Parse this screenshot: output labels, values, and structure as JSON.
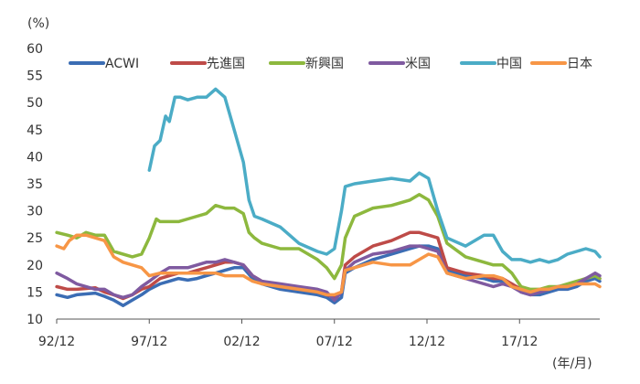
{
  "chart_data": {
    "type": "line",
    "ylabel": "(%)",
    "xlabel": "(年/月)",
    "ylim": [
      10,
      60
    ],
    "yticks": [
      10,
      15,
      20,
      25,
      30,
      35,
      40,
      45,
      50,
      55,
      60
    ],
    "xlim": [
      1992.917,
      2022.25
    ],
    "xticks": [
      {
        "value": 1992.917,
        "label": "92/12"
      },
      {
        "value": 1997.917,
        "label": "97/12"
      },
      {
        "value": 2002.917,
        "label": "02/12"
      },
      {
        "value": 2007.917,
        "label": "07/12"
      },
      {
        "value": 2012.917,
        "label": "12/12"
      },
      {
        "value": 2017.917,
        "label": "17/12"
      }
    ],
    "grid": false,
    "legend_position": "top",
    "series": [
      {
        "name": "ACWI",
        "color": "#3B6DB4",
        "x": [
          1992.92,
          1993.5,
          1994,
          1995,
          1995.5,
          1996,
          1996.5,
          1997,
          1997.5,
          1997.92,
          1998.5,
          1999,
          1999.5,
          2000,
          2000.5,
          2001,
          2001.5,
          2002,
          2002.5,
          2003,
          2003.5,
          2004,
          2005,
          2006,
          2007,
          2007.5,
          2007.92,
          2008.3,
          2008.5,
          2009,
          2010,
          2011,
          2012,
          2012.5,
          2013,
          2013.5,
          2014,
          2015,
          2016,
          2016.5,
          2017,
          2017.5,
          2018,
          2018.5,
          2019,
          2019.5,
          2020,
          2020.5,
          2021,
          2021.5,
          2022,
          2022.25
        ],
        "y": [
          14.5,
          14,
          14.5,
          14.8,
          14.2,
          13.5,
          12.5,
          13.5,
          14.5,
          15.5,
          16.5,
          17,
          17.5,
          17.2,
          17.5,
          18,
          18.5,
          19,
          19.5,
          19.5,
          17.5,
          16.5,
          15.5,
          15,
          14.5,
          14,
          13,
          14,
          18.5,
          19.5,
          21,
          22,
          23,
          23.5,
          23.5,
          23,
          19,
          18,
          17.5,
          17,
          17,
          16.5,
          15,
          14.5,
          14.5,
          15,
          15.5,
          15.5,
          16,
          17,
          17.5,
          17
        ]
      },
      {
        "name": "先進国",
        "color": "#BE4B48",
        "x": [
          1992.92,
          1993.5,
          1994,
          1995,
          1995.5,
          1996,
          1996.5,
          1997,
          1997.5,
          1997.92,
          1998.5,
          1999,
          1999.5,
          2000,
          2000.5,
          2001,
          2001.5,
          2002,
          2002.5,
          2003,
          2003.5,
          2004,
          2005,
          2006,
          2007,
          2007.5,
          2007.92,
          2008.3,
          2008.5,
          2009,
          2010,
          2011,
          2012,
          2012.5,
          2013,
          2013.5,
          2014,
          2015,
          2016,
          2016.5,
          2017,
          2017.5,
          2018,
          2018.5,
          2019,
          2019.5,
          2020,
          2020.5,
          2021,
          2021.5,
          2022,
          2022.25
        ],
        "y": [
          16,
          15.5,
          15.5,
          15.8,
          15,
          14.5,
          13.8,
          14.5,
          15.5,
          16,
          17.5,
          18,
          18.5,
          18.5,
          19,
          19.5,
          20,
          20.5,
          20.5,
          20,
          18,
          17,
          16,
          15.5,
          15,
          14.5,
          14,
          15,
          20,
          21.5,
          23.5,
          24.5,
          26,
          26,
          25.5,
          25,
          19.5,
          18.5,
          18,
          17.5,
          17.5,
          16.5,
          15.5,
          14.5,
          15,
          15.5,
          16,
          16,
          16.5,
          17.5,
          18,
          17.5
        ]
      },
      {
        "name": "新興国",
        "color": "#8DB83E",
        "x": [
          1992.92,
          1993.5,
          1994,
          1994.5,
          1995,
          1995.5,
          1996,
          1997,
          1997.5,
          1997.92,
          1998.3,
          1998.5,
          1999,
          1999.5,
          2000,
          2000.5,
          2001,
          2001.5,
          2002,
          2002.5,
          2003,
          2003.3,
          2003.6,
          2004,
          2005,
          2006,
          2007,
          2007.5,
          2007.92,
          2008.3,
          2008.5,
          2009,
          2010,
          2011,
          2012,
          2012.5,
          2013,
          2013.5,
          2014,
          2015,
          2016,
          2016.5,
          2017,
          2017.5,
          2018,
          2018.5,
          2019,
          2019.5,
          2020,
          2020.5,
          2021,
          2021.5,
          2022,
          2022.25
        ],
        "y": [
          26,
          25.5,
          25,
          26,
          25.5,
          25.5,
          22.5,
          21.5,
          22,
          25,
          28.5,
          28,
          28,
          28,
          28.5,
          29,
          29.5,
          31,
          30.5,
          30.5,
          29.5,
          26,
          25,
          24,
          23,
          23,
          21,
          19.5,
          17.5,
          20,
          25,
          29,
          30.5,
          31,
          32,
          33,
          32,
          29,
          24,
          21.5,
          20.5,
          20,
          20,
          18.5,
          16,
          15.5,
          15.5,
          16,
          16,
          16.5,
          17,
          17.5,
          18,
          17.5
        ]
      },
      {
        "name": "米国",
        "color": "#7F5AA0",
        "x": [
          1992.92,
          1993.5,
          1994,
          1995,
          1995.5,
          1996,
          1996.5,
          1997,
          1997.5,
          1997.92,
          1998.5,
          1999,
          1999.5,
          2000,
          2000.5,
          2001,
          2001.5,
          2002,
          2002.5,
          2003,
          2003.5,
          2004,
          2005,
          2006,
          2007,
          2007.5,
          2007.92,
          2008.3,
          2008.5,
          2009,
          2010,
          2011,
          2012,
          2012.5,
          2013,
          2013.5,
          2014,
          2015,
          2016,
          2016.5,
          2017,
          2017.5,
          2018,
          2018.5,
          2019,
          2019.5,
          2020,
          2020.5,
          2021,
          2021.5,
          2022,
          2022.25
        ],
        "y": [
          18.5,
          17.5,
          16.5,
          15.5,
          15.5,
          14.5,
          14,
          14.5,
          16,
          17,
          18.5,
          19.5,
          19.5,
          19.5,
          20,
          20.5,
          20.5,
          21,
          20.5,
          20,
          18,
          17,
          16.5,
          16,
          15.5,
          15,
          13.5,
          15,
          19,
          20.5,
          22,
          22.5,
          23.5,
          23.5,
          23,
          22.5,
          18.5,
          17.5,
          16.5,
          16,
          16.5,
          16,
          15,
          14.5,
          15,
          15.5,
          16,
          16,
          16.5,
          17.5,
          18.5,
          18
        ]
      },
      {
        "name": "中国",
        "color": "#4BACC6",
        "x": [
          1997.92,
          1998.2,
          1998.5,
          1998.8,
          1999,
          1999.3,
          1999.6,
          2000,
          2000.5,
          2001,
          2001.5,
          2002,
          2002.5,
          2003,
          2003.3,
          2003.6,
          2004,
          2005,
          2006,
          2007,
          2007.5,
          2007.92,
          2008.3,
          2008.5,
          2009,
          2010,
          2011,
          2012,
          2012.5,
          2013,
          2013.5,
          2014,
          2015,
          2016,
          2016.5,
          2017,
          2017.5,
          2018,
          2018.5,
          2019,
          2019.5,
          2020,
          2020.5,
          2021,
          2021.5,
          2022,
          2022.25
        ],
        "y": [
          37.5,
          42,
          43,
          47.5,
          46.5,
          51,
          51,
          50.5,
          51,
          51,
          52.5,
          51,
          45,
          39,
          32,
          29,
          28.5,
          27,
          24,
          22.5,
          22,
          23,
          30,
          34.5,
          35,
          35.5,
          36,
          35.5,
          37,
          36,
          30,
          25,
          23.5,
          25.5,
          25.5,
          22.5,
          21,
          21,
          20.5,
          21,
          20.5,
          21,
          22,
          22.5,
          23,
          22.5,
          21.5
        ]
      },
      {
        "name": "日本",
        "color": "#F79646",
        "x": [
          1992.92,
          1993.3,
          1993.6,
          1994,
          1994.5,
          1995,
          1995.5,
          1996,
          1996.5,
          1997,
          1997.5,
          1997.92,
          1998.5,
          1999,
          1999.5,
          2000,
          2000.5,
          2001,
          2001.5,
          2002,
          2002.5,
          2003,
          2003.5,
          2004,
          2005,
          2006,
          2007,
          2007.5,
          2007.92,
          2008.3,
          2008.5,
          2009,
          2010,
          2011,
          2012,
          2012.5,
          2013,
          2013.5,
          2014,
          2015,
          2016,
          2016.5,
          2017,
          2017.5,
          2018,
          2018.5,
          2019,
          2019.5,
          2020,
          2020.5,
          2021,
          2021.5,
          2022,
          2022.25
        ],
        "y": [
          23.5,
          23,
          24.5,
          25.5,
          25.5,
          25,
          24.5,
          21.5,
          20.5,
          20,
          19.5,
          18,
          18.5,
          18.5,
          18.5,
          18.5,
          18.5,
          18.5,
          18.5,
          18,
          18,
          18,
          17,
          16.5,
          16,
          15.5,
          15,
          14.5,
          14.5,
          15,
          19,
          19.5,
          20.5,
          20,
          20,
          21,
          22,
          21.5,
          18.5,
          17.5,
          18,
          18,
          17.5,
          16,
          15.5,
          15,
          15.5,
          15.5,
          16,
          16,
          16.5,
          16.5,
          16.5,
          16
        ]
      }
    ]
  }
}
